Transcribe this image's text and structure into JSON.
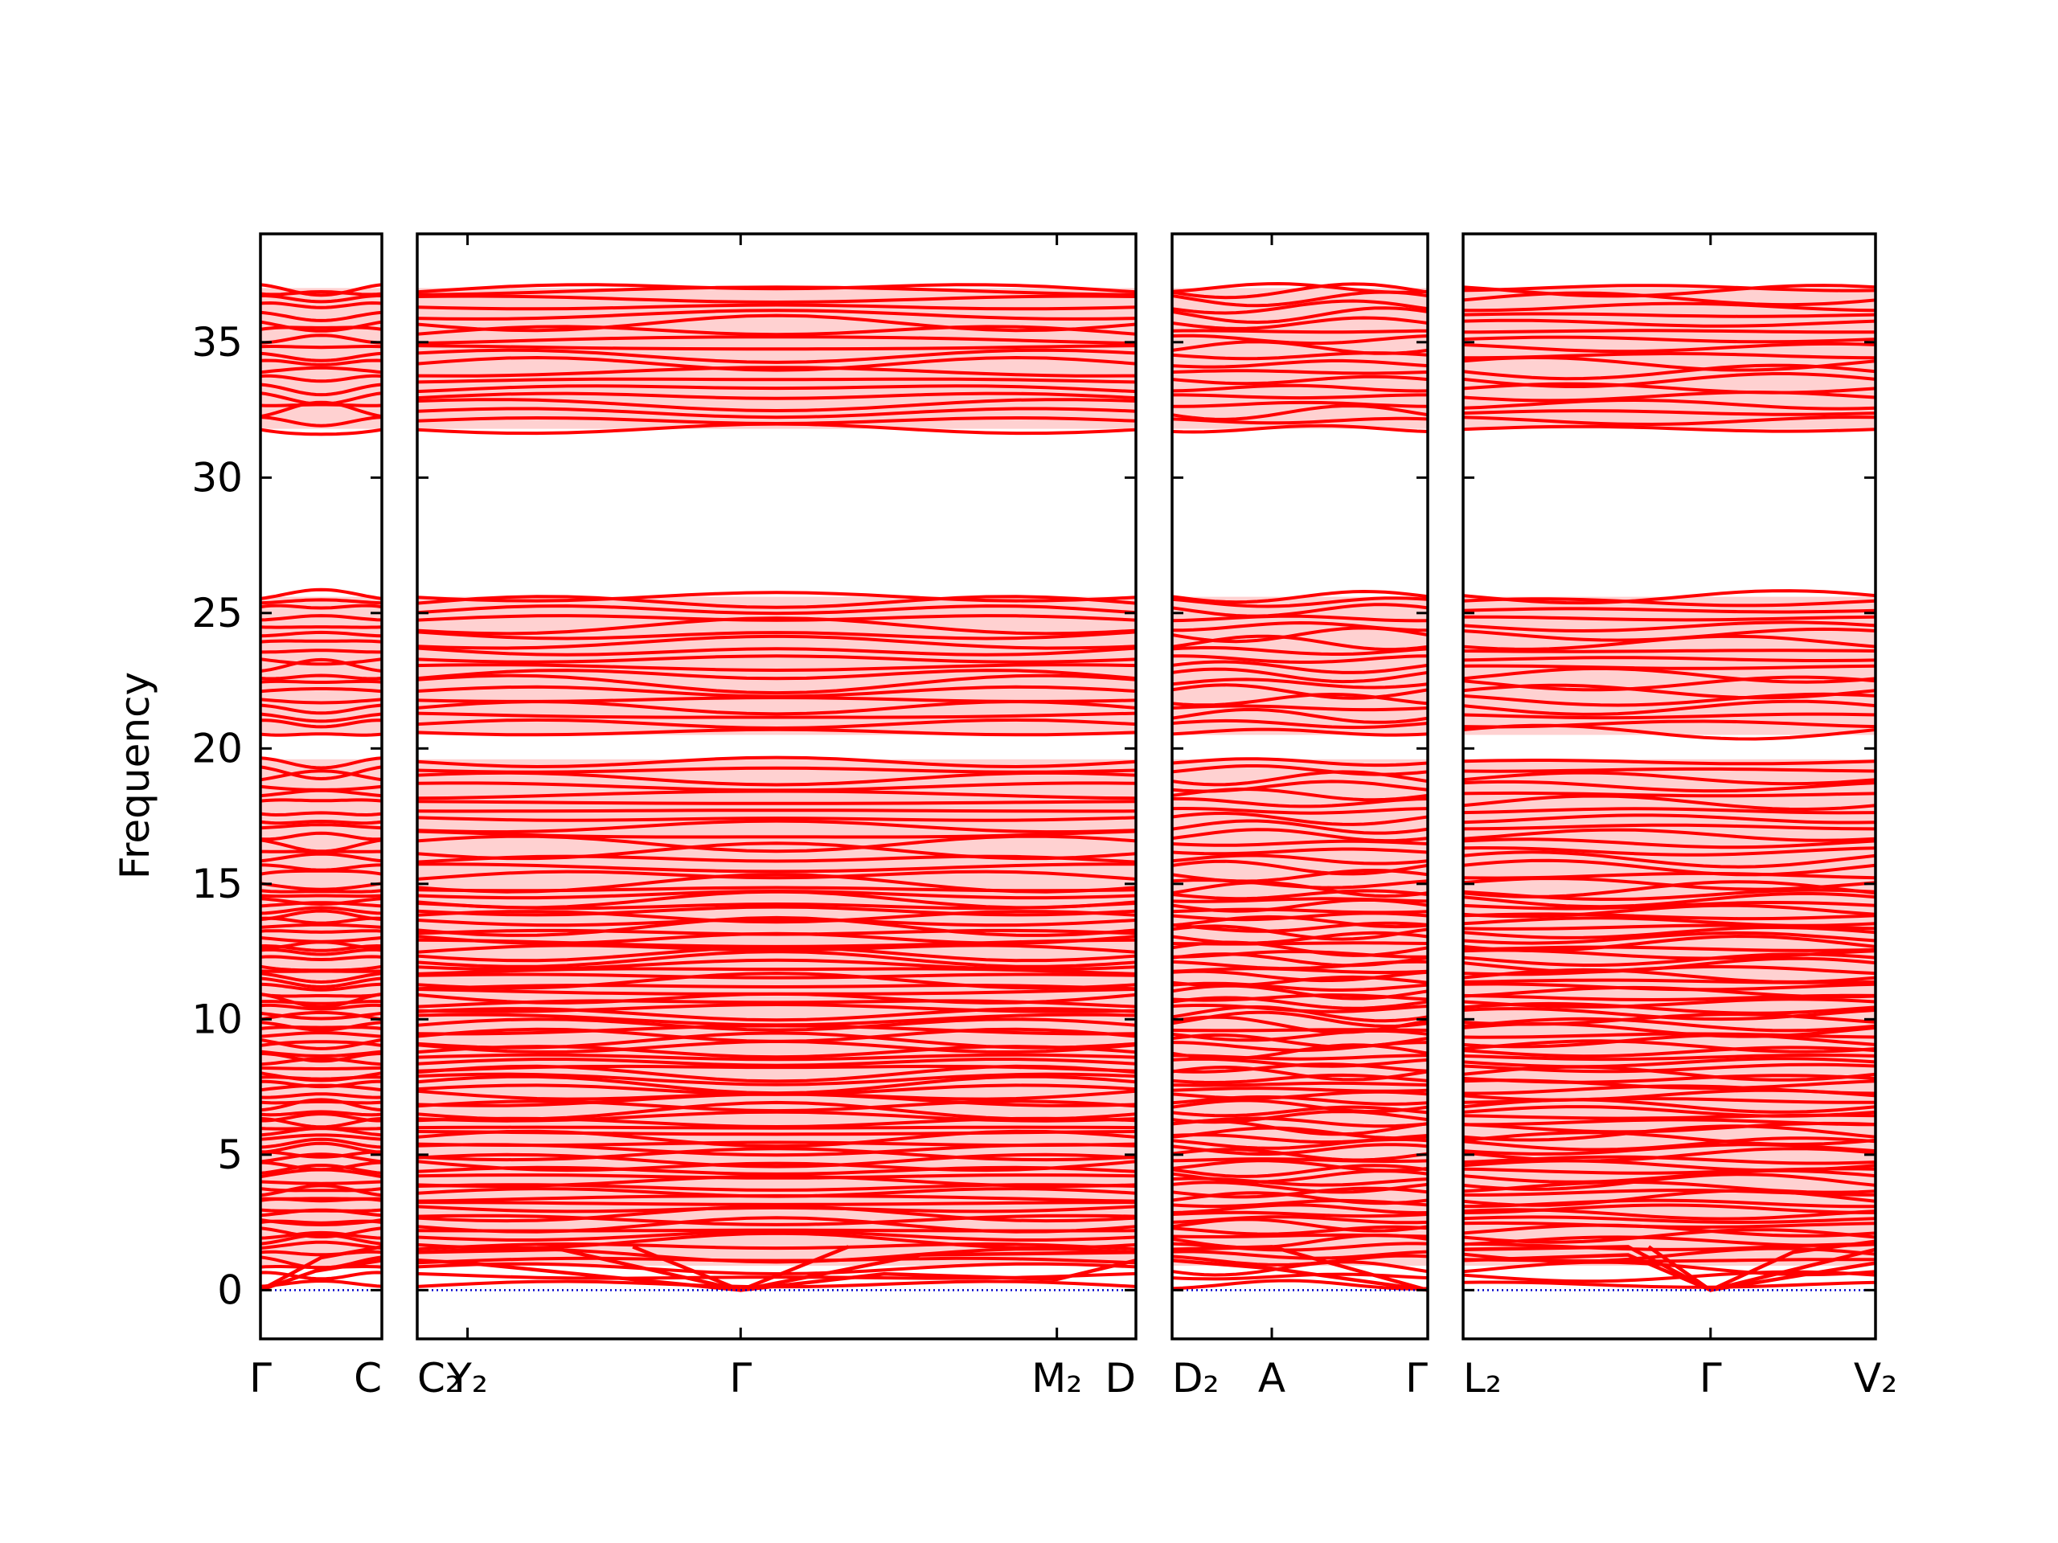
{
  "chart_data": {
    "type": "line",
    "ylabel": "Frequency",
    "ylim": [
      -1.8,
      39.0
    ],
    "yticks": [
      0,
      5,
      10,
      15,
      20,
      25,
      30,
      35
    ],
    "line_color": "#ff0000",
    "zero_line_color": "#0000cc",
    "grid": false,
    "legend": "none",
    "panels": [
      {
        "id": "panel-1",
        "segments": 1,
        "labels": [
          {
            "t": 0,
            "text": "Γ"
          },
          {
            "t": 1,
            "text": "C"
          }
        ]
      },
      {
        "id": "panel-2",
        "segments": 3,
        "labels": [
          {
            "t": 0,
            "text": "C₂"
          },
          {
            "t": 0.07,
            "text": "Y₂"
          },
          {
            "t": 0.45,
            "text": "Γ"
          },
          {
            "t": 0.89,
            "text": "M₂"
          },
          {
            "t": 1,
            "text": "D"
          }
        ]
      },
      {
        "id": "panel-3",
        "segments": 2,
        "labels": [
          {
            "t": 0,
            "text": "D₂"
          },
          {
            "t": 0.39,
            "text": "A"
          },
          {
            "t": 1,
            "text": "Γ"
          }
        ]
      },
      {
        "id": "panel-4",
        "segments": 2,
        "labels": [
          {
            "t": 0,
            "text": "L₂"
          },
          {
            "t": 0.6,
            "text": "Γ"
          },
          {
            "t": 1,
            "text": "V₂"
          }
        ]
      }
    ],
    "dense_bands": [
      [
        0.9,
        15.0
      ],
      [
        15.0,
        19.6
      ],
      [
        20.5,
        25.6
      ],
      [
        31.8,
        37.0
      ]
    ],
    "acoustic_branches": [
      {
        "panel": "panel-1",
        "points": [
          [
            0,
            0
          ],
          [
            0.45,
            0.7
          ],
          [
            1,
            1.1
          ]
        ]
      },
      {
        "panel": "panel-1",
        "points": [
          [
            0,
            0
          ],
          [
            0.5,
            1.2
          ],
          [
            1,
            1.6
          ]
        ]
      },
      {
        "panel": "panel-2",
        "points": [
          [
            0,
            1.1
          ],
          [
            0.07,
            1.0
          ],
          [
            0.45,
            0.0
          ],
          [
            0.65,
            0.6
          ],
          [
            0.89,
            0.4
          ],
          [
            1,
            1.1
          ]
        ]
      },
      {
        "panel": "panel-2",
        "points": [
          [
            0,
            1.4
          ],
          [
            0.2,
            1.5
          ],
          [
            0.45,
            0.0
          ],
          [
            0.7,
            1.3
          ],
          [
            1,
            1.4
          ]
        ]
      },
      {
        "panel": "panel-2",
        "points": [
          [
            0.3,
            1.6
          ],
          [
            0.45,
            0.0
          ],
          [
            0.6,
            1.6
          ]
        ]
      },
      {
        "panel": "panel-3",
        "points": [
          [
            0,
            1.1
          ],
          [
            0.39,
            0.8
          ],
          [
            1,
            0.0
          ]
        ]
      },
      {
        "panel": "panel-3",
        "points": [
          [
            0,
            1.5
          ],
          [
            0.39,
            1.6
          ],
          [
            1,
            0.0
          ]
        ]
      },
      {
        "panel": "panel-4",
        "points": [
          [
            0,
            1.1
          ],
          [
            0.4,
            1.3
          ],
          [
            0.6,
            0.0
          ],
          [
            1,
            1.0
          ]
        ]
      },
      {
        "panel": "panel-4",
        "points": [
          [
            0,
            1.5
          ],
          [
            0.4,
            1.6
          ],
          [
            0.6,
            0.0
          ],
          [
            1,
            1.5
          ]
        ]
      },
      {
        "panel": "panel-4",
        "points": [
          [
            0.45,
            1.6
          ],
          [
            0.6,
            0.0
          ],
          [
            0.8,
            1.4
          ],
          [
            1,
            1.8
          ]
        ]
      }
    ],
    "band_levels": [
      0.2,
      0.5,
      0.8,
      1.1,
      1.3,
      1.6,
      1.8,
      2.0,
      2.2,
      2.4,
      2.6,
      2.8,
      3.0,
      3.2,
      3.4,
      3.6,
      3.8,
      4.0,
      4.2,
      4.4,
      4.6,
      4.8,
      5.0,
      5.2,
      5.4,
      5.6,
      5.8,
      6.0,
      6.2,
      6.4,
      6.6,
      6.8,
      7.0,
      7.2,
      7.4,
      7.6,
      7.8,
      8.0,
      8.2,
      8.4,
      8.6,
      8.8,
      9.0,
      9.2,
      9.4,
      9.6,
      9.8,
      10.0,
      10.2,
      10.4,
      10.6,
      10.8,
      11.0,
      11.2,
      11.4,
      11.6,
      11.8,
      12.0,
      12.2,
      12.4,
      12.6,
      12.8,
      13.0,
      13.2,
      13.4,
      13.6,
      13.8,
      14.0,
      14.2,
      14.4,
      14.6,
      14.8,
      15.0,
      15.3,
      15.6,
      15.9,
      16.2,
      16.5,
      16.8,
      17.1,
      17.4,
      17.7,
      18.0,
      18.3,
      18.6,
      18.9,
      19.2,
      19.5,
      20.6,
      20.9,
      21.2,
      21.5,
      21.8,
      22.1,
      22.4,
      22.7,
      23.0,
      23.3,
      23.6,
      23.9,
      24.2,
      24.5,
      24.8,
      25.1,
      25.4,
      25.6,
      31.8,
      32.1,
      32.4,
      32.7,
      33.0,
      33.3,
      33.6,
      33.9,
      34.2,
      34.5,
      34.8,
      35.1,
      35.4,
      35.7,
      36.0,
      36.3,
      36.6,
      36.9,
      37.0
    ]
  }
}
